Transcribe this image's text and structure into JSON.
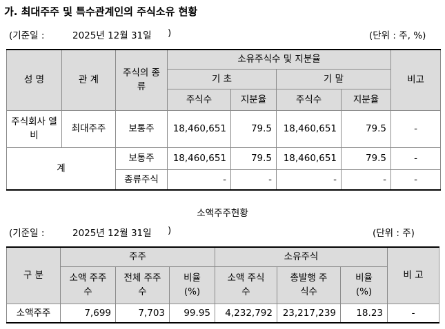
{
  "title": "가. 최대주주 및 특수관계인의 주식소유 현황",
  "section1": {
    "date_label": "(기준일 :",
    "date_value": "2025년 12월 31일",
    "date_close": ")",
    "unit": "(단위 : 주, %)",
    "headers": {
      "name": "성 명",
      "relation": "관 계",
      "stock_type": "주식의 종류",
      "ownership": "소유주식수 및 지분율",
      "start": "기 초",
      "end": "기 말",
      "shares": "주식수",
      "ratio": "지분율",
      "note": "비고"
    },
    "rows": [
      {
        "name": "주식회사 엘비",
        "relation": "최대주주",
        "type": "보통주",
        "start_shares": "18,460,651",
        "start_ratio": "79.5",
        "end_shares": "18,460,651",
        "end_ratio": "79.5",
        "note": "-"
      }
    ],
    "total": {
      "label": "계",
      "rows": [
        {
          "type": "보통주",
          "start_shares": "18,460,651",
          "start_ratio": "79.5",
          "end_shares": "18,460,651",
          "end_ratio": "79.5",
          "note": "-"
        },
        {
          "type": "종류주식",
          "start_shares": "-",
          "start_ratio": "-",
          "end_shares": "-",
          "end_ratio": "-",
          "note": "-"
        }
      ]
    }
  },
  "section2": {
    "title": "소액주주현황",
    "date_label": "(기준일 :",
    "date_value": "2025년 12월 31일",
    "date_close": ")",
    "unit": "(단위 : 주)",
    "headers": {
      "category": "구 분",
      "holders": "주주",
      "owned": "소유주식",
      "note": "비 고",
      "minor_holders": "소액 주주수",
      "total_holders": "전체 주주수",
      "holders_ratio": "비율 (%)",
      "minor_shares": "소액 주식수",
      "total_issued": "총발행 주식수",
      "shares_ratio": "비율 (%)"
    },
    "row": {
      "category": "소액주주",
      "minor_holders": "7,699",
      "total_holders": "7,703",
      "holders_ratio": "99.95",
      "minor_shares": "4,232,792",
      "total_issued": "23,217,239",
      "shares_ratio": "18.23",
      "note": "-"
    }
  }
}
